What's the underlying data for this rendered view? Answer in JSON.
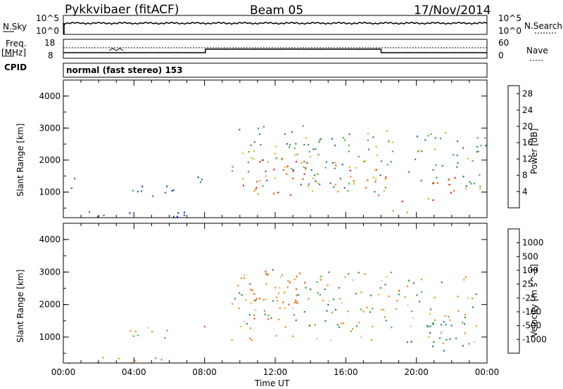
{
  "header": {
    "title": "Pykkvibaer (fitACF)",
    "beam": "Beam 05",
    "date": "17/Nov/2014"
  },
  "strip_labels": {
    "nsky": "N.Sky",
    "nsky_ticks": [
      "10^5",
      "10^0"
    ],
    "nsearch": "N.Search",
    "nsearch_ticks": [
      "10^5",
      "10^0"
    ],
    "freq": "Freq.",
    "freq_unit": "[MHz]",
    "freq_ticks": [
      "18",
      "8"
    ],
    "nave": "Nave",
    "nave_ticks": [
      "60",
      "0"
    ],
    "cpid": "CPID",
    "cpid_text": "normal (fast stereo) 153"
  },
  "chart_data": [
    {
      "type": "heatmap",
      "title": "",
      "xlabel": "Time UT",
      "ylabel": "Slant Range [km]",
      "x_ticks": [
        "00:00",
        "04:00",
        "08:00",
        "12:00",
        "16:00",
        "20:00",
        "00:00"
      ],
      "y_ticks": [
        "1000",
        "2000",
        "3000",
        "4000"
      ],
      "xlim_hours": [
        0,
        24
      ],
      "ylim_km": [
        200,
        4500
      ],
      "colorbar": {
        "label": "Power [dB]",
        "ticks": [
          "4",
          "8",
          "12",
          "16",
          "20",
          "24",
          "28"
        ],
        "range": [
          0,
          30
        ],
        "colors": [
          "#1530e0",
          "#1a48b8",
          "#2a6aa0",
          "#3a8a6a",
          "#50b040",
          "#d0c020",
          "#f09018",
          "#ef5a10",
          "#e82010"
        ]
      },
      "blobs": [
        {
          "t0": 0.1,
          "t1": 0.6,
          "r0": 900,
          "r1": 1700,
          "v": 6
        },
        {
          "t0": 0.1,
          "t1": 7.8,
          "r0": 220,
          "r1": 420,
          "v": 7
        },
        {
          "t0": 3.2,
          "t1": 6.3,
          "r0": 850,
          "r1": 1350,
          "v": 9
        },
        {
          "t0": 7.6,
          "t1": 8.1,
          "r0": 1200,
          "r1": 2200,
          "v": 6
        },
        {
          "t0": 9.5,
          "t1": 14.6,
          "r0": 1200,
          "r1": 3100,
          "v": 14
        },
        {
          "t0": 10.0,
          "t1": 13.8,
          "r0": 900,
          "r1": 2200,
          "v": 26
        },
        {
          "t0": 13.8,
          "t1": 18.7,
          "r0": 1000,
          "r1": 3000,
          "v": 14
        },
        {
          "t0": 15.3,
          "t1": 18.3,
          "r0": 900,
          "r1": 1900,
          "v": 25
        },
        {
          "t0": 18.6,
          "t1": 19.6,
          "r0": 250,
          "r1": 850,
          "v": 24
        },
        {
          "t0": 19.5,
          "t1": 23.9,
          "r0": 1100,
          "r1": 2900,
          "v": 12
        },
        {
          "t0": 20.5,
          "t1": 22.3,
          "r0": 750,
          "r1": 1600,
          "v": 27
        }
      ]
    },
    {
      "type": "heatmap",
      "title": "",
      "xlabel": "Time UT",
      "ylabel": "Slant Range [km]",
      "x_ticks": [
        "00:00",
        "04:00",
        "08:00",
        "12:00",
        "16:00",
        "20:00",
        "00:00"
      ],
      "y_ticks": [
        "1000",
        "2000",
        "3000",
        "4000"
      ],
      "xlim_hours": [
        0,
        24
      ],
      "ylim_km": [
        200,
        4500
      ],
      "colorbar": {
        "label": "Velocity [m s^-1]",
        "ticks": [
          "1000",
          "500",
          "100",
          "25",
          "-25",
          "-100",
          "-500",
          "-1000"
        ],
        "colors": [
          "#1b3aa8",
          "#1f70a0",
          "#2e8c5a",
          "#48b83a",
          "#c6c6c6",
          "#f0b418",
          "#f08c18",
          "#ee5a10",
          "#e01a10"
        ]
      },
      "blobs": [
        {
          "t0": 0.2,
          "t1": 7.5,
          "r0": 220,
          "r1": 420,
          "v": -100
        },
        {
          "t0": 3.5,
          "t1": 6.0,
          "r0": 900,
          "r1": 1500,
          "v": 0
        },
        {
          "t0": 7.6,
          "t1": 8.0,
          "r0": 1300,
          "r1": 1900,
          "v": -300
        },
        {
          "t0": 9.5,
          "t1": 18.8,
          "r0": 900,
          "r1": 3100,
          "v": 0
        },
        {
          "t0": 10.5,
          "t1": 13.8,
          "r0": 1500,
          "r1": 3100,
          "v": -400
        },
        {
          "t0": 18.8,
          "t1": 23.5,
          "r0": 800,
          "r1": 2900,
          "v": 0
        },
        {
          "t0": 20.5,
          "t1": 22.6,
          "r0": 600,
          "r1": 1500,
          "v": 400
        }
      ]
    }
  ]
}
